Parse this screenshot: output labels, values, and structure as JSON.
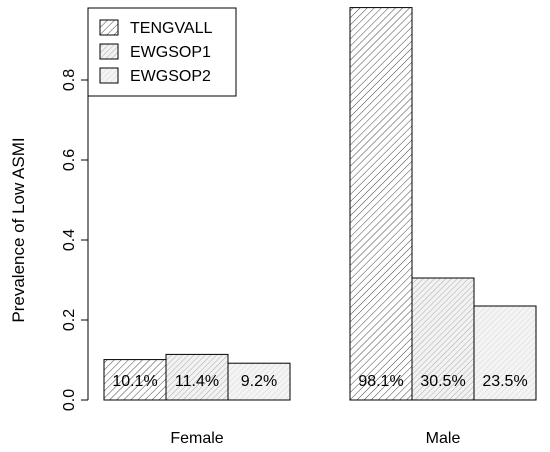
{
  "chart_data": {
    "type": "bar",
    "categories": [
      "Female",
      "Male"
    ],
    "series": [
      {
        "name": "TENGVALL",
        "values": [
          0.101,
          0.981
        ],
        "labels": [
          "10.1%",
          "98.1%"
        ],
        "pattern": "dense-diagonal"
      },
      {
        "name": "EWGSOP1",
        "values": [
          0.114,
          0.305
        ],
        "labels": [
          "11.4%",
          "30.5%"
        ],
        "pattern": "medium-diagonal"
      },
      {
        "name": "EWGSOP2",
        "values": [
          0.092,
          0.235
        ],
        "labels": [
          "9.2%",
          "23.5%"
        ],
        "pattern": "light-diagonal"
      }
    ],
    "xlabel": "",
    "ylabel": "Prevalence of Low ASMI",
    "yticks": [
      "0.0",
      "0.2",
      "0.4",
      "0.6",
      "0.8"
    ],
    "ylim": [
      0,
      0.98
    ],
    "grid": false,
    "legend_position": "top-left",
    "colors": {
      "stroke": "#000000",
      "hatch": "#555555",
      "background": "#ffffff"
    }
  }
}
